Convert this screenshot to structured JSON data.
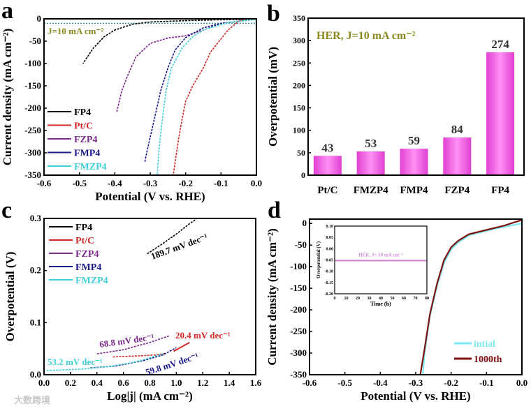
{
  "watermark": "大数跨境",
  "chart_data": [
    {
      "id": "a",
      "panel_label": "a",
      "type": "line",
      "xlabel": "Potential (V vs. RHE)",
      "ylabel": "Current density (mA cm⁻²)",
      "xlim": [
        -0.6,
        0.0
      ],
      "ylim": [
        -350,
        0
      ],
      "xticks": [
        "-0.6",
        "-0.5",
        "-0.4",
        "-0.3",
        "-0.2",
        "-0.1",
        "0.0"
      ],
      "yticks": [
        "0",
        "-50",
        "-100",
        "-150",
        "-200",
        "-250",
        "-300",
        "-350"
      ],
      "annotation": "J=10 mA cm⁻²",
      "reference_line": {
        "y": -10,
        "color": "#3a9a9a"
      },
      "legend_position": "bottom-left",
      "series": [
        {
          "name": "FP4",
          "color": "#000000",
          "points": [
            [
              0,
              -1
            ],
            [
              -0.1,
              -2
            ],
            [
              -0.2,
              -4
            ],
            [
              -0.3,
              -7
            ],
            [
              -0.35,
              -12
            ],
            [
              -0.4,
              -25
            ],
            [
              -0.43,
              -40
            ],
            [
              -0.46,
              -65
            ],
            [
              -0.49,
              -100
            ]
          ]
        },
        {
          "name": "Pt/C",
          "color": "#d42a2a",
          "points": [
            [
              -0.03,
              0
            ],
            [
              -0.05,
              -5
            ],
            [
              -0.08,
              -25
            ],
            [
              -0.1,
              -45
            ],
            [
              -0.13,
              -75
            ],
            [
              -0.15,
              -110
            ],
            [
              -0.18,
              -150
            ],
            [
              -0.2,
              -185
            ],
            [
              -0.21,
              -225
            ],
            [
              -0.22,
              -270
            ],
            [
              -0.235,
              -350
            ]
          ]
        },
        {
          "name": "FZP4",
          "color": "#7a2a8a",
          "points": [
            [
              0,
              -1
            ],
            [
              -0.1,
              -10
            ],
            [
              -0.15,
              -25
            ],
            [
              -0.2,
              -38
            ],
            [
              -0.25,
              -43
            ],
            [
              -0.3,
              -55
            ],
            [
              -0.34,
              -85
            ],
            [
              -0.36,
              -120
            ],
            [
              -0.38,
              -160
            ],
            [
              -0.395,
              -210
            ]
          ]
        },
        {
          "name": "FMP4",
          "color": "#1a1a8a",
          "points": [
            [
              0,
              -1
            ],
            [
              -0.1,
              -10
            ],
            [
              -0.15,
              -20
            ],
            [
              -0.2,
              -42
            ],
            [
              -0.23,
              -70
            ],
            [
              -0.25,
              -110
            ],
            [
              -0.27,
              -160
            ],
            [
              -0.29,
              -230
            ],
            [
              -0.31,
              -300
            ],
            [
              -0.315,
              -320
            ]
          ]
        },
        {
          "name": "FMZP4",
          "color": "#3fd0d8",
          "points": [
            [
              0,
              -1
            ],
            [
              -0.08,
              -8
            ],
            [
              -0.15,
              -25
            ],
            [
              -0.18,
              -40
            ],
            [
              -0.21,
              -65
            ],
            [
              -0.24,
              -110
            ],
            [
              -0.255,
              -160
            ],
            [
              -0.265,
              -220
            ],
            [
              -0.275,
              -290
            ],
            [
              -0.28,
              -350
            ]
          ]
        }
      ]
    },
    {
      "id": "b",
      "panel_label": "b",
      "type": "bar",
      "title": "HER, J=10 mA cm⁻²",
      "ylabel": "Overpotential (mV)",
      "xlabel": "",
      "ylim": [
        0,
        350
      ],
      "yticks": [
        "0",
        "50",
        "100",
        "150",
        "200",
        "250",
        "300",
        "350"
      ],
      "categories": [
        "Pt/C",
        "FMZP4",
        "FMP4",
        "FZP4",
        "FP4"
      ],
      "values": [
        43,
        53,
        59,
        84,
        274
      ],
      "color": "#f060e0"
    },
    {
      "id": "c",
      "panel_label": "c",
      "type": "line",
      "xlabel": "Log|j| (mA cm⁻²)",
      "ylabel": "Overpotential (V)",
      "xlim": [
        0.0,
        1.6
      ],
      "ylim": [
        0.0,
        0.3
      ],
      "xticks": [
        "0.0",
        "0.2",
        "0.4",
        "0.6",
        "0.8",
        "1.0",
        "1.2",
        "1.4",
        "1.6"
      ],
      "yticks": [
        "0.0",
        "0.1",
        "0.2",
        "0.3"
      ],
      "legend_position": "top-left",
      "series": [
        {
          "name": "FP4",
          "color": "#000000",
          "tafel": "189.7 mV dec⁻¹",
          "points": [
            [
              0.78,
              0.232
            ],
            [
              0.9,
              0.252
            ],
            [
              1.0,
              0.27
            ],
            [
              1.1,
              0.29
            ],
            [
              1.15,
              0.298
            ]
          ]
        },
        {
          "name": "Pt/C",
          "color": "#d42a2a",
          "tafel": "20.4 mV dec⁻¹",
          "points": [
            [
              0.52,
              0.034
            ],
            [
              0.7,
              0.036
            ],
            [
              0.85,
              0.038
            ],
            [
              0.92,
              0.041
            ]
          ]
        },
        {
          "name": "FZP4",
          "color": "#7a2a8a",
          "tafel": "68.8 mV dec⁻¹",
          "points": [
            [
              0.4,
              0.04
            ],
            [
              0.6,
              0.048
            ],
            [
              0.8,
              0.062
            ],
            [
              0.95,
              0.075
            ]
          ]
        },
        {
          "name": "FMP4",
          "color": "#1a1a8a",
          "tafel": "59.8 mV dec⁻¹",
          "points": [
            [
              0.35,
              0.013
            ],
            [
              0.55,
              0.017
            ],
            [
              0.75,
              0.027
            ],
            [
              0.9,
              0.038
            ],
            [
              1.0,
              0.052
            ]
          ]
        },
        {
          "name": "FMZP4",
          "color": "#3fd0d8",
          "tafel": "53.2 mV dec⁻¹",
          "points": [
            [
              0.02,
              0.008
            ],
            [
              0.3,
              0.011
            ],
            [
              0.5,
              0.016
            ],
            [
              0.7,
              0.025
            ],
            [
              0.9,
              0.04
            ]
          ]
        }
      ]
    },
    {
      "id": "d",
      "panel_label": "d",
      "type": "line",
      "xlabel": "Potential (V vs. RHE)",
      "ylabel": "Current density (mA cm⁻²)",
      "xlim": [
        -0.6,
        0.0
      ],
      "ylim": [
        -350,
        10
      ],
      "xticks": [
        "-0.6",
        "-0.5",
        "-0.4",
        "-0.3",
        "-0.2",
        "-0.1",
        "0.0"
      ],
      "yticks": [
        "0",
        "-50",
        "-100",
        "-150",
        "-200",
        "-250",
        "-300",
        "-350"
      ],
      "legend_position": "bottom-right",
      "series": [
        {
          "name": "intial",
          "color": "#7ee8f0",
          "points": [
            [
              0,
              0
            ],
            [
              -0.05,
              -8
            ],
            [
              -0.1,
              -17
            ],
            [
              -0.15,
              -28
            ],
            [
              -0.18,
              -44
            ],
            [
              -0.2,
              -60
            ],
            [
              -0.22,
              -92
            ],
            [
              -0.24,
              -145
            ],
            [
              -0.26,
              -215
            ],
            [
              -0.275,
              -300
            ],
            [
              -0.28,
              -350
            ]
          ]
        },
        {
          "name": "1000th",
          "color": "#7a1010",
          "points": [
            [
              0,
              8
            ],
            [
              -0.05,
              -5
            ],
            [
              -0.1,
              -15
            ],
            [
              -0.15,
              -25
            ],
            [
              -0.18,
              -40
            ],
            [
              -0.2,
              -55
            ],
            [
              -0.22,
              -85
            ],
            [
              -0.24,
              -140
            ],
            [
              -0.26,
              -210
            ],
            [
              -0.275,
              -290
            ],
            [
              -0.287,
              -350
            ]
          ]
        }
      ],
      "inset": {
        "xlabel": "Time (h)",
        "ylabel": "Overpotential (V)",
        "xlim": [
          0,
          80
        ],
        "ylim": [
          -0.2,
          0.1
        ],
        "xticks": [
          "0",
          "10",
          "20",
          "30",
          "40",
          "50",
          "60",
          "70",
          "80"
        ],
        "yticks": [
          "0.10",
          "0.05",
          "0.00",
          "-0.05",
          "-0.10",
          "-0.15",
          "-0.20"
        ],
        "annotation": "HER, J= 10 mA cm⁻²",
        "series": [
          {
            "name": "stability",
            "color": "#d080d8",
            "points": [
              [
                0,
                -0.053
              ],
              [
                80,
                -0.053
              ]
            ]
          }
        ]
      }
    }
  ]
}
